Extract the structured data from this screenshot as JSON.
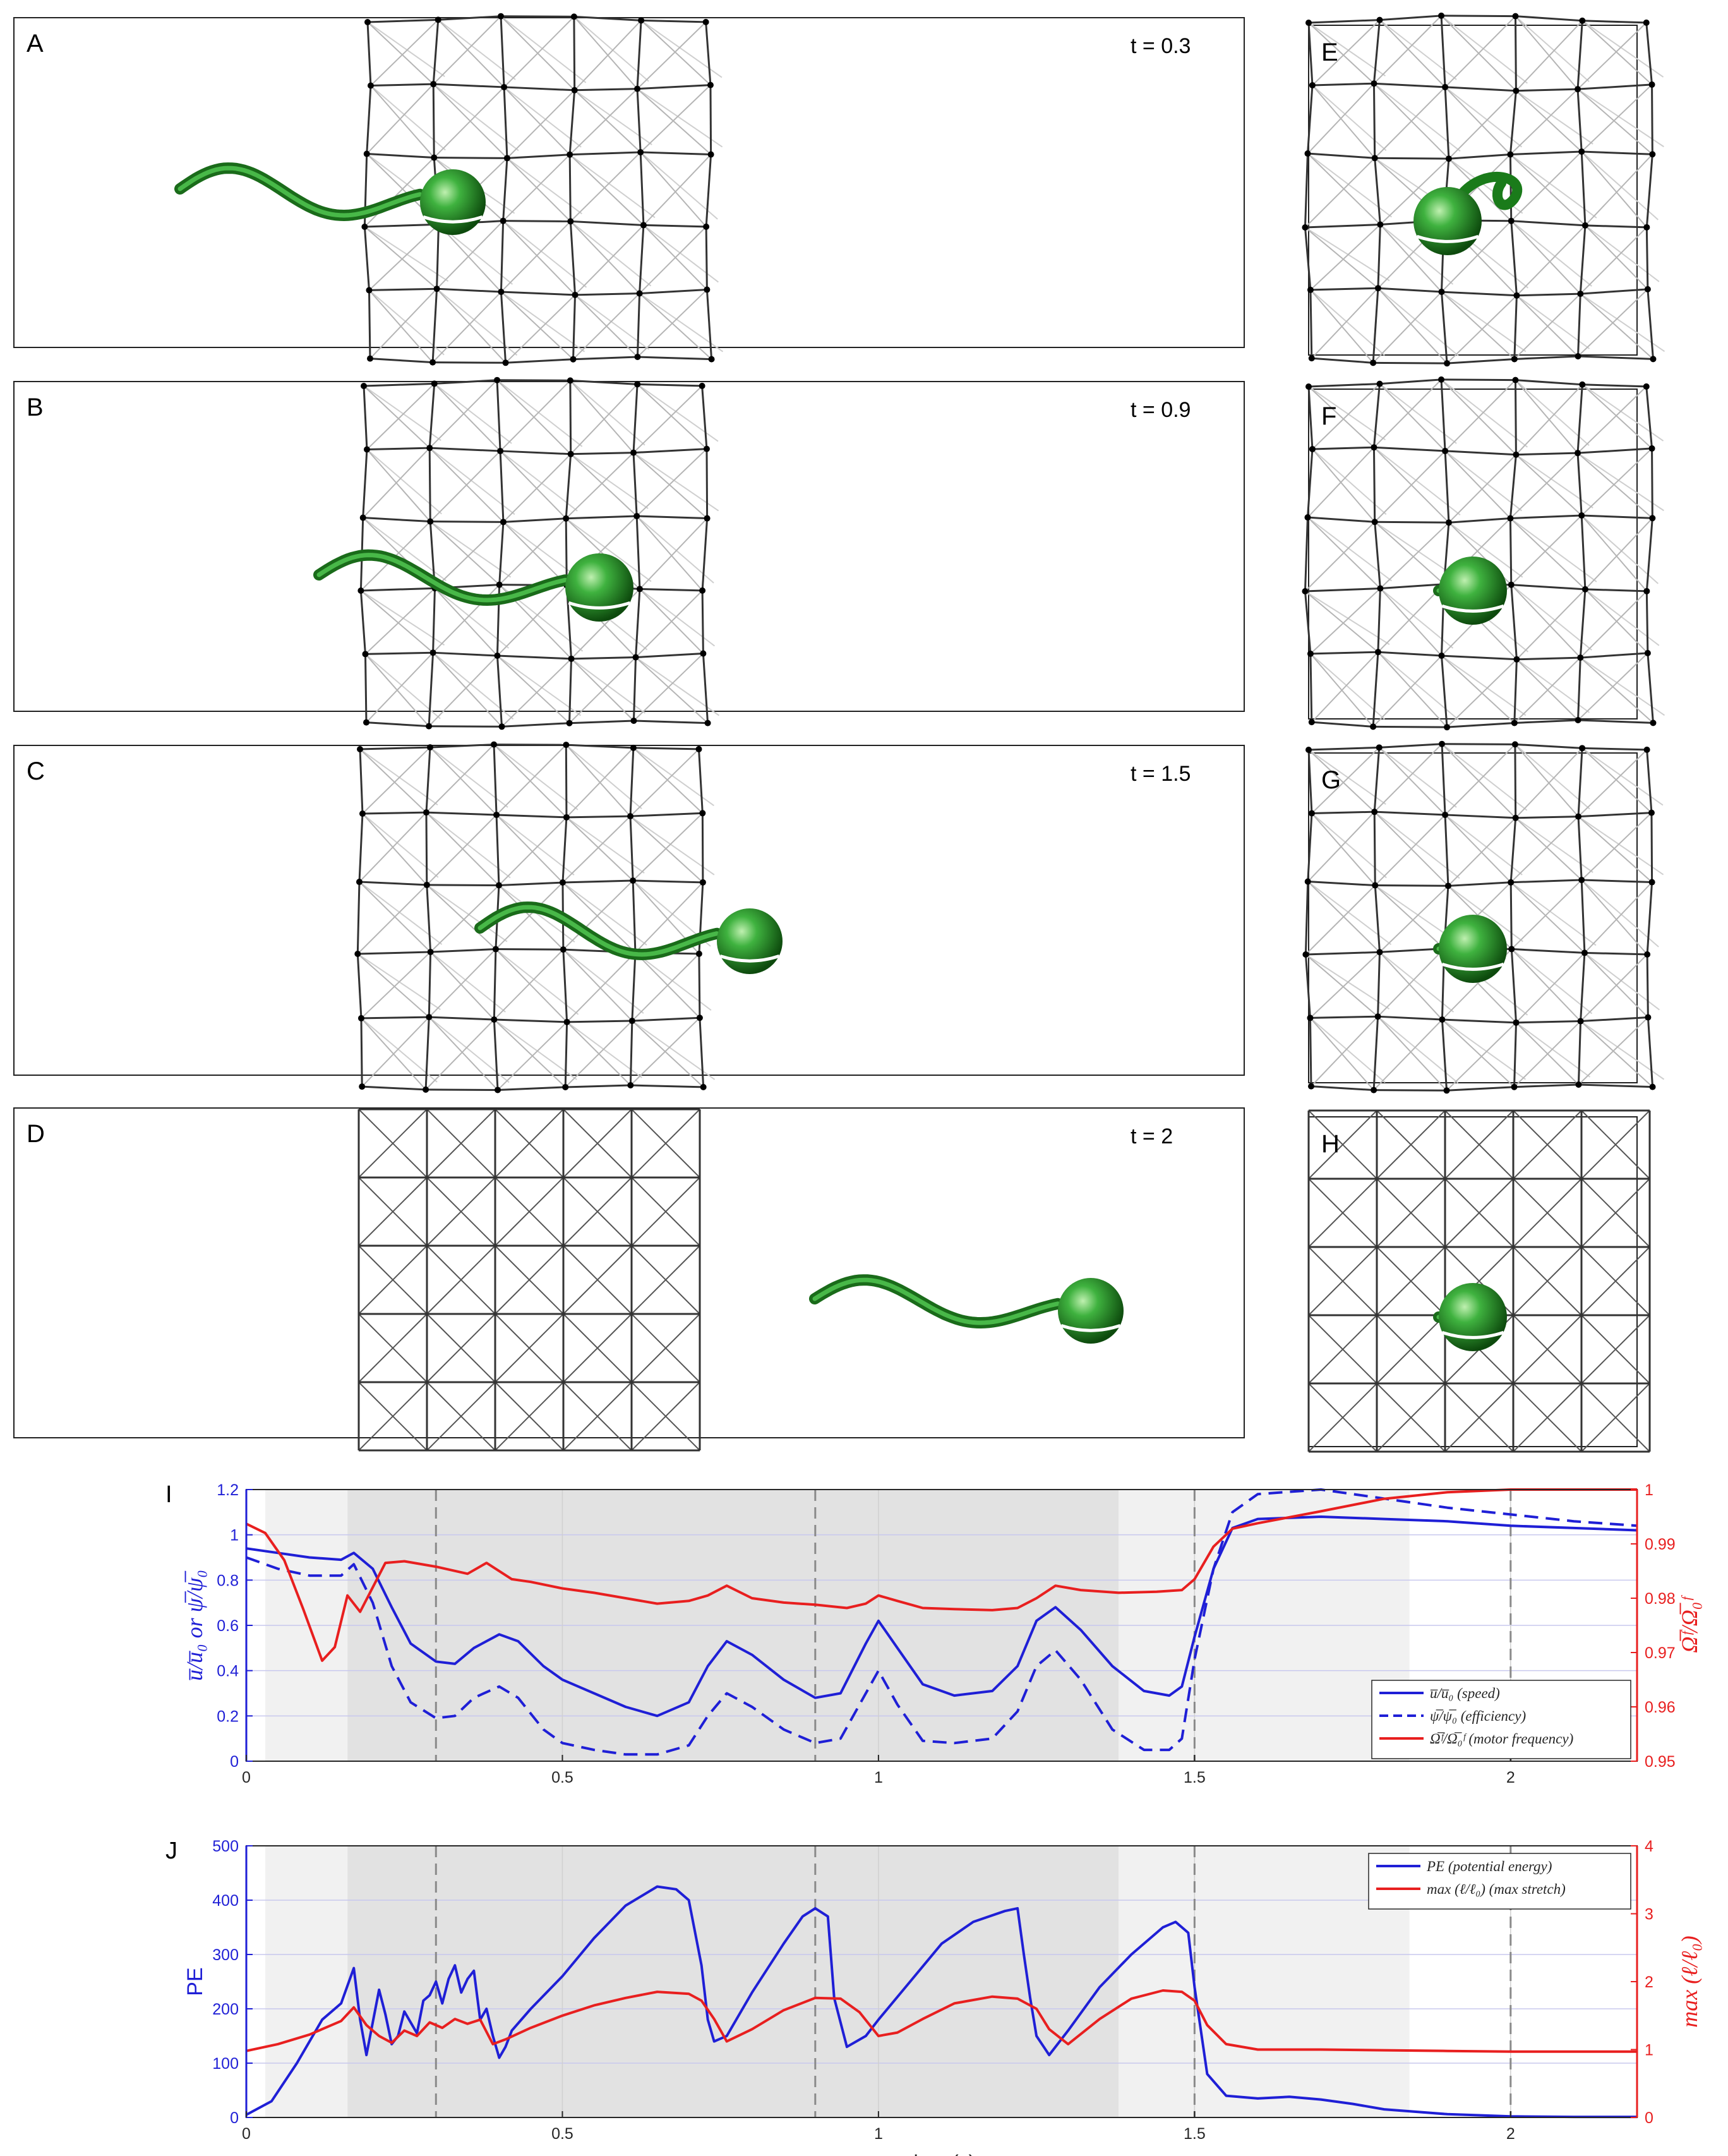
{
  "panels": [
    {
      "letter": "A",
      "time_label": "t = 0.3",
      "stretch": 1
    },
    {
      "letter": "B",
      "time_label": "t = 0.9",
      "stretch": 1
    },
    {
      "letter": "C",
      "time_label": "t = 1.5",
      "stretch": 1
    },
    {
      "letter": "D",
      "time_label": "t = 2",
      "stretch": 0
    }
  ],
  "side_panels": [
    {
      "letter": "E",
      "stretch": 1
    },
    {
      "letter": "F",
      "stretch": 1
    },
    {
      "letter": "G",
      "stretch": 1
    },
    {
      "letter": "H",
      "stretch": 0
    }
  ],
  "colors": {
    "speed": "#1f1fd6",
    "efficiency": "#1f1fd6",
    "motor": "#e81f1f",
    "pe": "#1f1fd6",
    "stretch": "#e81f1f",
    "swimmer": "#2a9a2a",
    "lattice": "#555555"
  },
  "chart_data": [
    {
      "panel": "I",
      "type": "line",
      "xlim": [
        0,
        2.2
      ],
      "x_ticks": [
        "0",
        "0.5",
        "1",
        "1.5",
        "2"
      ],
      "x_tick_values": [
        0,
        0.5,
        1,
        1.5,
        2
      ],
      "ylim_left": [
        0,
        1.2
      ],
      "y_left_ticks": [
        "0",
        "0.2",
        "0.4",
        "0.6",
        "0.8",
        "1",
        "1.2"
      ],
      "y_left_tick_values": [
        0,
        0.2,
        0.4,
        0.6,
        0.8,
        1,
        1.2
      ],
      "ylabel_left": "u̅/u̅₀ or ψ̅/ψ̅₀",
      "ylim_right": [
        0.95,
        1
      ],
      "y_right_ticks": [
        "0.95",
        "0.96",
        "0.97",
        "0.98",
        "0.99",
        "1"
      ],
      "y_right_tick_values": [
        0.95,
        0.96,
        0.97,
        0.98,
        0.99,
        1
      ],
      "ylabel_right": "Ω̅ᶠ/Ω̅₀ᶠ",
      "shaded_regions": [
        {
          "from": 0.03,
          "to": 0.16,
          "level": "light"
        },
        {
          "from": 0.16,
          "to": 1.38,
          "level": "dark"
        },
        {
          "from": 1.38,
          "to": 1.84,
          "level": "light"
        }
      ],
      "dashed_vlines": [
        0.3,
        0.9,
        1.5,
        2
      ],
      "legend_position": "lower-right",
      "series": [
        {
          "name": "u̅/u̅₀ (speed)",
          "axis": "left",
          "style": "solid",
          "x": [
            0,
            0.05,
            0.1,
            0.15,
            0.17,
            0.2,
            0.23,
            0.26,
            0.3,
            0.33,
            0.36,
            0.4,
            0.43,
            0.47,
            0.5,
            0.55,
            0.6,
            0.65,
            0.7,
            0.73,
            0.76,
            0.8,
            0.85,
            0.9,
            0.94,
            0.98,
            1.0,
            1.03,
            1.07,
            1.12,
            1.18,
            1.22,
            1.25,
            1.28,
            1.32,
            1.37,
            1.42,
            1.46,
            1.48,
            1.5,
            1.53,
            1.56,
            1.6,
            1.7,
            1.8,
            1.9,
            2.0,
            2.1,
            2.2
          ],
          "y": [
            0.94,
            0.92,
            0.9,
            0.89,
            0.92,
            0.85,
            0.68,
            0.52,
            0.44,
            0.43,
            0.5,
            0.56,
            0.53,
            0.42,
            0.36,
            0.3,
            0.24,
            0.2,
            0.26,
            0.42,
            0.53,
            0.47,
            0.36,
            0.28,
            0.3,
            0.52,
            0.62,
            0.5,
            0.34,
            0.29,
            0.31,
            0.42,
            0.62,
            0.68,
            0.58,
            0.42,
            0.31,
            0.29,
            0.33,
            0.55,
            0.85,
            1.03,
            1.07,
            1.08,
            1.07,
            1.06,
            1.04,
            1.03,
            1.02
          ]
        },
        {
          "name": "ψ̅/ψ̅₀ (efficiency)",
          "axis": "left",
          "style": "dashed",
          "x": [
            0,
            0.05,
            0.1,
            0.15,
            0.17,
            0.2,
            0.23,
            0.26,
            0.3,
            0.33,
            0.36,
            0.4,
            0.43,
            0.47,
            0.5,
            0.55,
            0.6,
            0.65,
            0.7,
            0.73,
            0.76,
            0.8,
            0.85,
            0.9,
            0.94,
            0.98,
            1.0,
            1.03,
            1.07,
            1.12,
            1.18,
            1.22,
            1.25,
            1.28,
            1.32,
            1.37,
            1.42,
            1.46,
            1.48,
            1.5,
            1.53,
            1.56,
            1.6,
            1.7,
            1.8,
            1.9,
            2.0,
            2.1,
            2.2
          ],
          "y": [
            0.9,
            0.85,
            0.82,
            0.82,
            0.87,
            0.7,
            0.42,
            0.26,
            0.19,
            0.2,
            0.28,
            0.33,
            0.28,
            0.14,
            0.08,
            0.05,
            0.03,
            0.03,
            0.07,
            0.2,
            0.3,
            0.24,
            0.14,
            0.08,
            0.1,
            0.3,
            0.4,
            0.25,
            0.09,
            0.08,
            0.1,
            0.22,
            0.42,
            0.49,
            0.36,
            0.14,
            0.05,
            0.05,
            0.1,
            0.45,
            0.85,
            1.1,
            1.18,
            1.2,
            1.16,
            1.12,
            1.09,
            1.06,
            1.04
          ]
        },
        {
          "name": "Ω̅ᶠ/Ω̅₀ᶠ (motor frequency)",
          "axis": "right",
          "style": "solid",
          "x": [
            0,
            0.03,
            0.06,
            0.09,
            0.12,
            0.14,
            0.16,
            0.18,
            0.2,
            0.22,
            0.25,
            0.3,
            0.35,
            0.38,
            0.42,
            0.45,
            0.5,
            0.55,
            0.6,
            0.65,
            0.7,
            0.73,
            0.76,
            0.8,
            0.85,
            0.9,
            0.95,
            0.98,
            1.0,
            1.03,
            1.07,
            1.12,
            1.18,
            1.22,
            1.25,
            1.28,
            1.32,
            1.38,
            1.44,
            1.48,
            1.5,
            1.53,
            1.56,
            1.6,
            1.7,
            1.8,
            1.9,
            2.0,
            2.1,
            2.2
          ],
          "y": [
            0.9937,
            0.992,
            0.987,
            0.978,
            0.9685,
            0.971,
            0.9805,
            0.9775,
            0.982,
            0.9865,
            0.9868,
            0.9858,
            0.9845,
            0.9865,
            0.9835,
            0.983,
            0.9818,
            0.981,
            0.98,
            0.979,
            0.9795,
            0.9805,
            0.9823,
            0.98,
            0.9792,
            0.9788,
            0.9782,
            0.979,
            0.9805,
            0.9795,
            0.9782,
            0.978,
            0.9778,
            0.9782,
            0.98,
            0.9823,
            0.9815,
            0.981,
            0.9812,
            0.9815,
            0.9835,
            0.9895,
            0.9928,
            0.9938,
            0.996,
            0.9983,
            0.9995,
            1.0,
            1.0,
            1.0
          ]
        }
      ]
    },
    {
      "panel": "J",
      "type": "line",
      "xlim": [
        0,
        2.2
      ],
      "x_ticks": [
        "0",
        "0.5",
        "1",
        "1.5",
        "2"
      ],
      "x_tick_values": [
        0,
        0.5,
        1,
        1.5,
        2
      ],
      "xlabel": "time (s)",
      "ylim_left": [
        0,
        500
      ],
      "y_left_ticks": [
        "0",
        "100",
        "200",
        "300",
        "400",
        "500"
      ],
      "y_left_tick_values": [
        0,
        100,
        200,
        300,
        400,
        500
      ],
      "ylabel_left": "PE",
      "ylim_right": [
        0,
        4
      ],
      "y_right_ticks": [
        "0",
        "1",
        "2",
        "3",
        "4"
      ],
      "y_right_tick_values": [
        0,
        1,
        2,
        3,
        4
      ],
      "ylabel_right": "max (ℓ/ℓ₀)",
      "shaded_regions": [
        {
          "from": 0.03,
          "to": 0.16,
          "level": "light"
        },
        {
          "from": 0.16,
          "to": 1.38,
          "level": "dark"
        },
        {
          "from": 1.38,
          "to": 1.84,
          "level": "light"
        }
      ],
      "dashed_vlines": [
        0.3,
        0.9,
        1.5,
        2
      ],
      "legend_position": "top-right",
      "series": [
        {
          "name": "PE (potential energy)",
          "axis": "left",
          "style": "solid",
          "x": [
            0,
            0.04,
            0.08,
            0.12,
            0.15,
            0.17,
            0.18,
            0.19,
            0.2,
            0.21,
            0.22,
            0.23,
            0.24,
            0.25,
            0.26,
            0.27,
            0.28,
            0.29,
            0.3,
            0.31,
            0.32,
            0.33,
            0.34,
            0.35,
            0.36,
            0.37,
            0.38,
            0.39,
            0.4,
            0.41,
            0.42,
            0.45,
            0.5,
            0.55,
            0.6,
            0.65,
            0.68,
            0.7,
            0.72,
            0.73,
            0.74,
            0.76,
            0.8,
            0.85,
            0.88,
            0.9,
            0.92,
            0.93,
            0.95,
            0.98,
            1.0,
            1.05,
            1.1,
            1.15,
            1.2,
            1.22,
            1.23,
            1.24,
            1.25,
            1.27,
            1.3,
            1.35,
            1.4,
            1.45,
            1.47,
            1.49,
            1.5,
            1.52,
            1.55,
            1.6,
            1.65,
            1.7,
            1.75,
            1.8,
            1.9,
            2.0,
            2.1,
            2.2
          ],
          "y": [
            5,
            30,
            100,
            180,
            210,
            275,
            180,
            115,
            175,
            235,
            190,
            135,
            150,
            195,
            175,
            155,
            215,
            225,
            250,
            210,
            255,
            280,
            230,
            255,
            270,
            180,
            200,
            150,
            110,
            130,
            160,
            200,
            260,
            330,
            390,
            425,
            420,
            400,
            280,
            180,
            140,
            150,
            230,
            320,
            370,
            385,
            370,
            220,
            130,
            150,
            180,
            250,
            320,
            360,
            380,
            385,
            300,
            220,
            150,
            115,
            160,
            240,
            300,
            350,
            360,
            340,
            240,
            80,
            40,
            35,
            38,
            33,
            25,
            15,
            6,
            2,
            1,
            1
          ]
        },
        {
          "name": "max (ℓ/ℓ₀) (max stretch)",
          "axis": "right",
          "style": "solid",
          "x": [
            0,
            0.05,
            0.1,
            0.15,
            0.17,
            0.19,
            0.21,
            0.23,
            0.25,
            0.27,
            0.29,
            0.31,
            0.33,
            0.35,
            0.37,
            0.39,
            0.41,
            0.45,
            0.5,
            0.55,
            0.6,
            0.65,
            0.7,
            0.72,
            0.74,
            0.76,
            0.8,
            0.85,
            0.9,
            0.94,
            0.97,
            1.0,
            1.03,
            1.07,
            1.12,
            1.18,
            1.22,
            1.25,
            1.27,
            1.3,
            1.35,
            1.4,
            1.45,
            1.48,
            1.5,
            1.52,
            1.55,
            1.6,
            1.7,
            1.8,
            1.9,
            2.0,
            2.1,
            2.2
          ],
          "y": [
            0.98,
            1.08,
            1.22,
            1.42,
            1.62,
            1.36,
            1.2,
            1.1,
            1.28,
            1.2,
            1.4,
            1.32,
            1.45,
            1.38,
            1.44,
            1.08,
            1.15,
            1.32,
            1.5,
            1.65,
            1.76,
            1.85,
            1.82,
            1.72,
            1.45,
            1.12,
            1.3,
            1.58,
            1.76,
            1.75,
            1.55,
            1.2,
            1.25,
            1.45,
            1.68,
            1.78,
            1.75,
            1.6,
            1.3,
            1.08,
            1.45,
            1.75,
            1.87,
            1.85,
            1.72,
            1.36,
            1.08,
            1.0,
            1.0,
            0.99,
            0.98,
            0.97,
            0.97,
            0.97
          ]
        }
      ]
    }
  ]
}
